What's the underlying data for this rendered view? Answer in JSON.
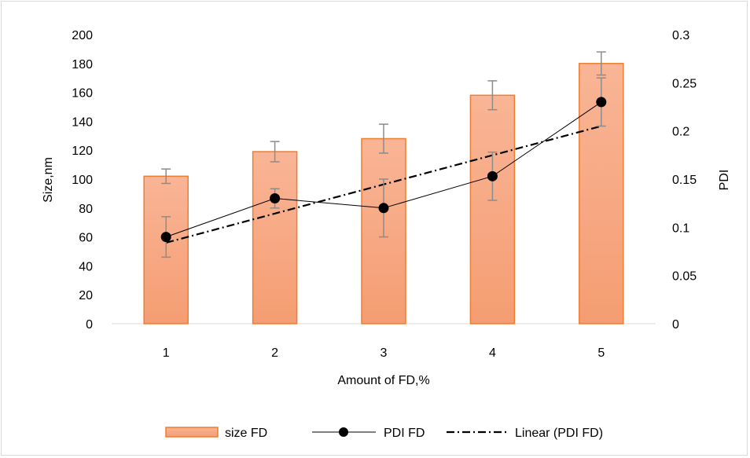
{
  "chart_data": {
    "type": "bar",
    "categories": [
      "1",
      "2",
      "3",
      "4",
      "5"
    ],
    "xlabel": "Amount of FD,%",
    "ylabel": "Size,nm",
    "y2label": "PDI",
    "ylim": [
      0,
      200
    ],
    "y2lim": [
      0,
      0.3
    ],
    "yticks": [
      "0",
      "20",
      "40",
      "60",
      "80",
      "100",
      "120",
      "140",
      "160",
      "180",
      "200"
    ],
    "y2ticks": [
      "0",
      "0.05",
      "0.1",
      "0.15",
      "0.2",
      "0.25",
      "0.3"
    ],
    "grid": false,
    "legend_position": "bottom",
    "series": [
      {
        "name": "size FD",
        "kind": "bar",
        "axis": "left",
        "values": [
          102,
          119,
          128,
          158,
          180
        ],
        "errors": [
          5,
          7,
          10,
          10,
          8
        ],
        "color": "#f8a87f",
        "edge_color": "#ed7d31"
      },
      {
        "name": "PDI FD",
        "kind": "line",
        "axis": "right",
        "values": [
          0.09,
          0.13,
          0.12,
          0.153,
          0.23
        ],
        "errors": [
          0.021,
          0.01,
          0.03,
          0.025,
          0.025
        ],
        "color": "#000000"
      },
      {
        "name": "Linear (PDI FD)",
        "kind": "trendline",
        "axis": "right",
        "values": [
          0.084,
          0.114,
          0.145,
          0.175,
          0.205
        ],
        "color": "#000000"
      }
    ]
  }
}
